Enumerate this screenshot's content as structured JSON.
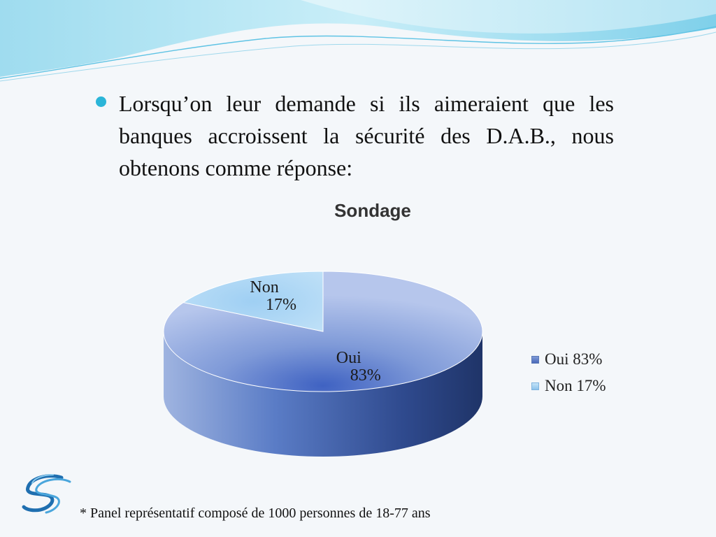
{
  "slide": {
    "bullet_text": "Lorsqu’on leur demande si ils aimeraient que les banques accroissent la sécurité des D.A.B., nous obtenons comme réponse:",
    "footnote": "* Panel représentatif composé de 1000 personnes de 18-77 ans"
  },
  "chart_data": {
    "type": "pie",
    "title": "Sondage",
    "slices": [
      {
        "name": "Oui",
        "value": 83,
        "data_label": "Oui",
        "data_value_label": "83%",
        "legend_label": "Oui 83%",
        "color": "#b2c4ea",
        "side_color": "#3f5fa6"
      },
      {
        "name": "Non",
        "value": 17,
        "data_label": "Non",
        "data_value_label": "17%",
        "legend_label": "Non 17%",
        "color": "#a8d4f2",
        "side_color": "#6aa8d8"
      }
    ],
    "legend_position": "right",
    "style": "3d"
  },
  "theme": {
    "accent": "#2bb5d8",
    "wave_light": "#bfe9f5",
    "wave_dark": "#5fc3e4"
  }
}
